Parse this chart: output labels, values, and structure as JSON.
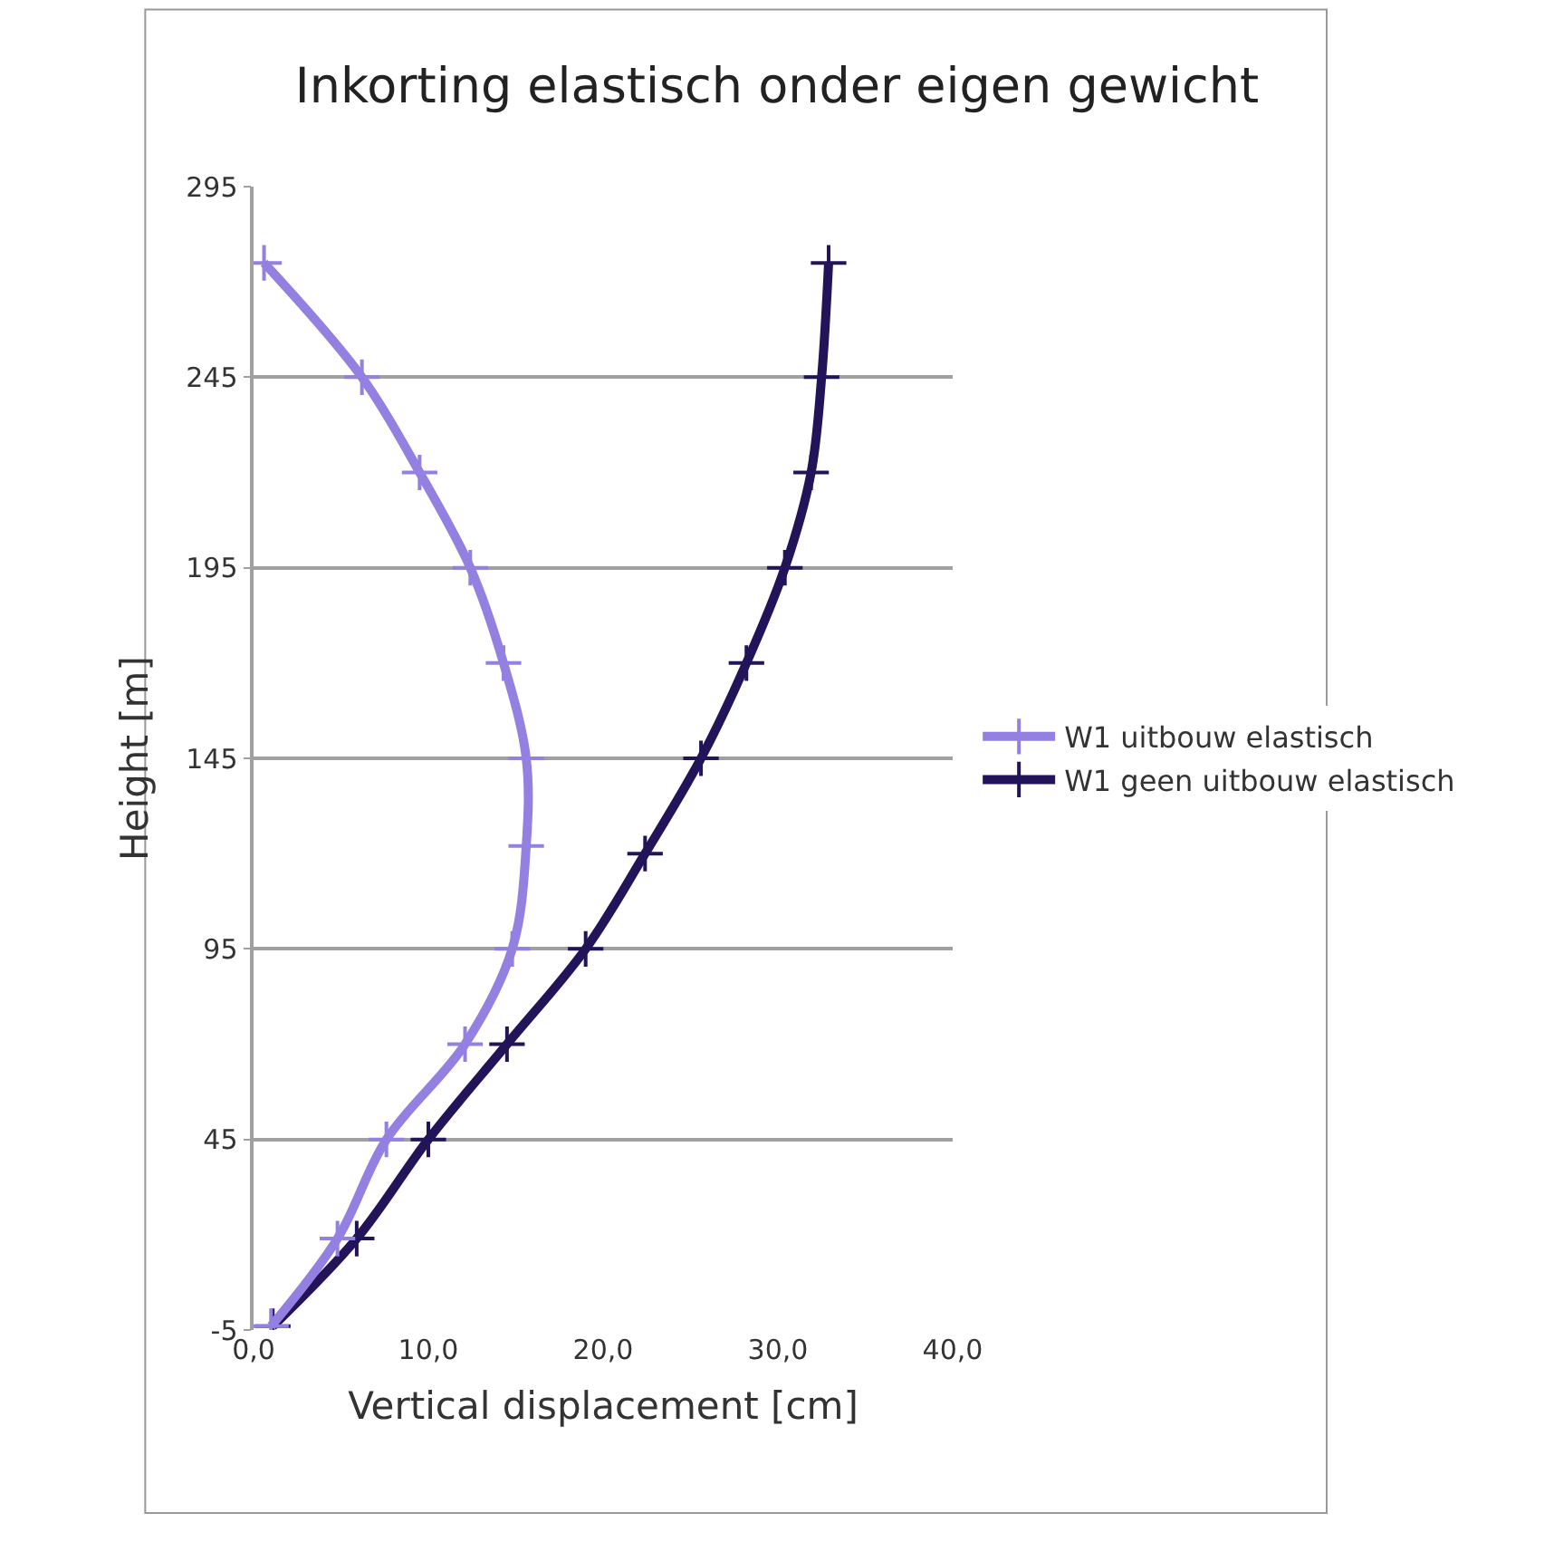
{
  "chart_data": {
    "type": "line",
    "title": "Inkorting elastisch onder eigen gewicht",
    "xlabel": "Vertical displacement [cm]",
    "ylabel": "Height [m]",
    "series": [
      {
        "name": "W1 uitbouw elastisch",
        "color": "#9380e0",
        "x": [
          1.0,
          4.8,
          7.6,
          12.1,
          14.8,
          15.6,
          15.6,
          14.3,
          12.4,
          9.5,
          6.2,
          0.6
        ],
        "values": [
          -4,
          19,
          45,
          70,
          95,
          122,
          145,
          170,
          195,
          220,
          245,
          275
        ]
      },
      {
        "name": "W1 geen uitbouw elastisch",
        "color": "#231459",
        "x": [
          1.1,
          5.9,
          10.0,
          14.5,
          19.0,
          22.4,
          25.6,
          28.2,
          30.4,
          31.9,
          32.5,
          32.9
        ],
        "values": [
          -4,
          19,
          45,
          70,
          95,
          120,
          145,
          170,
          195,
          220,
          245,
          275
        ]
      }
    ],
    "xlim": [
      0,
      40
    ],
    "xticks": [
      {
        "value": 0,
        "label": "0,0"
      },
      {
        "value": 10,
        "label": "10,0"
      },
      {
        "value": 20,
        "label": "20,0"
      },
      {
        "value": 30,
        "label": "30,0"
      },
      {
        "value": 40,
        "label": "40,0"
      }
    ],
    "ylim": [
      -5,
      295
    ],
    "yticks": [
      -5,
      45,
      95,
      145,
      195,
      245,
      295
    ],
    "grid": "y",
    "legend": "right",
    "marker": "cross",
    "line_style": "solid"
  }
}
